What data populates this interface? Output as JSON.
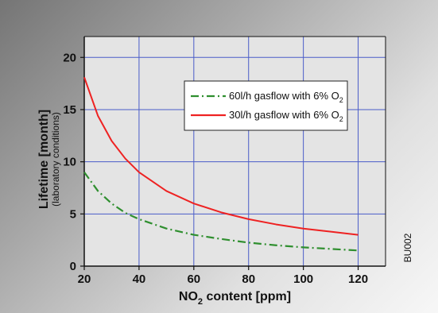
{
  "chart_data": {
    "type": "line",
    "xlabel": {
      "pre": "NO",
      "sub": "2",
      "post": " content [ppm]"
    },
    "ylabel": {
      "main": "Lifetime  [month]",
      "sub": "(laboratory conditions)"
    },
    "xlim": [
      20,
      130
    ],
    "ylim": [
      0,
      22
    ],
    "xticks": [
      "20",
      "40",
      "60",
      "80",
      "100",
      "120"
    ],
    "yticks": [
      "0",
      "5",
      "10",
      "15",
      "20"
    ],
    "grid": true,
    "legend_position": "top-right",
    "series": [
      {
        "name": {
          "pre": "60l/h gasflow with 6% O",
          "sub": "2"
        },
        "color": "#2f8f2f",
        "style": "dash-dot",
        "x": [
          20,
          25,
          30,
          35,
          40,
          50,
          60,
          70,
          80,
          90,
          100,
          110,
          120
        ],
        "y": [
          9.0,
          7.2,
          6.0,
          5.1,
          4.5,
          3.6,
          3.0,
          2.6,
          2.25,
          2.0,
          1.8,
          1.65,
          1.5
        ]
      },
      {
        "name": {
          "pre": "30l/h gasflow with 6% O",
          "sub": "2"
        },
        "color": "#ee2222",
        "style": "solid",
        "x": [
          20,
          25,
          30,
          35,
          40,
          50,
          60,
          70,
          80,
          90,
          100,
          110,
          120
        ],
        "y": [
          18.1,
          14.4,
          12.0,
          10.3,
          9.0,
          7.2,
          6.0,
          5.15,
          4.5,
          4.0,
          3.6,
          3.3,
          3.0
        ]
      }
    ]
  },
  "code_label": "BU002",
  "colors": {
    "plot_bg": "#e4e4e4",
    "grid": "#4a5cc8",
    "axis": "#111111"
  }
}
